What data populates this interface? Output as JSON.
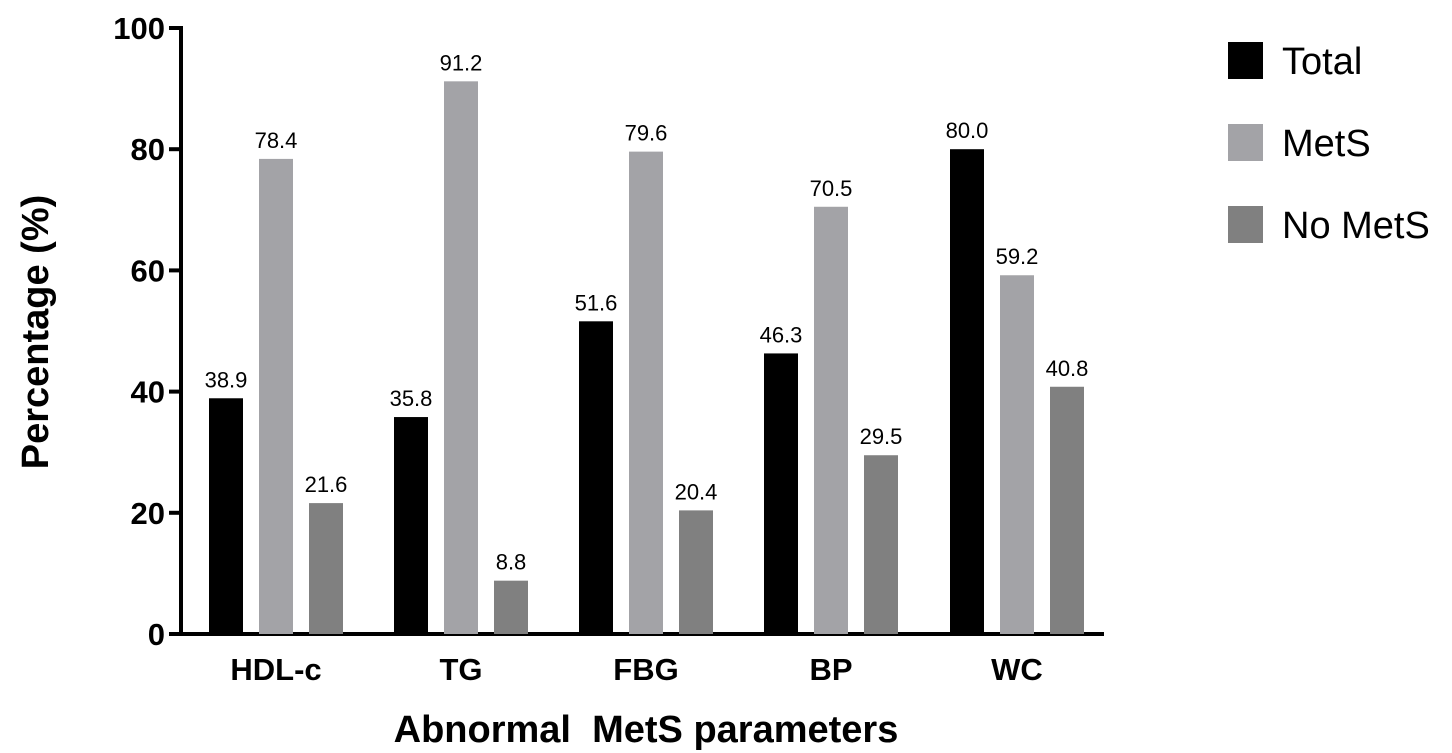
{
  "chart_data": {
    "type": "bar",
    "title": "",
    "xlabel": "Abnormal  MetS parameters",
    "ylabel": "Percentage (%)",
    "ylim": [
      0,
      100
    ],
    "yticks": [
      0,
      20,
      40,
      60,
      80,
      100
    ],
    "categories": [
      "HDL-c",
      "TG",
      "FBG",
      "BP",
      "WC"
    ],
    "series": [
      {
        "name": "Total",
        "color": "#000000",
        "values": [
          38.9,
          35.8,
          51.6,
          46.3,
          80.0
        ],
        "labels": [
          "38.9",
          "35.8",
          "51.6",
          "46.3",
          "80.0"
        ]
      },
      {
        "name": "MetS",
        "color": "#a3a3a7",
        "values": [
          78.4,
          91.2,
          79.6,
          70.5,
          59.2
        ],
        "labels": [
          "78.4",
          "91.2",
          "79.6",
          "70.5",
          "59.2"
        ]
      },
      {
        "name": "No MetS",
        "color": "#808080",
        "values": [
          21.6,
          8.8,
          20.4,
          29.5,
          40.8
        ],
        "labels": [
          "21.6",
          "8.8",
          "20.4",
          "29.5",
          "40.8"
        ]
      }
    ],
    "legend_position": "top-right",
    "grid": false
  }
}
